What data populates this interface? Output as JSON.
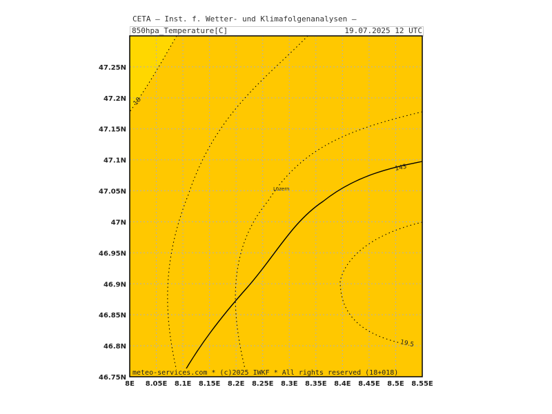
{
  "header": {
    "title": "CETA — Inst. f. Wetter- und Klimafolgenanalysen —",
    "parameter": "850hpa_Temperature[C]",
    "valid_time": "19.07.2025 12 UTC"
  },
  "footer": {
    "copyright": "meteo-services.com * (c)2025 IWKF * All rights reserved (18+018)"
  },
  "map": {
    "colors": {
      "fill_main": "#ffc800",
      "fill_warm_corner": "#ffd700",
      "grid": "#b0b0b0",
      "isotherm": "#000000"
    },
    "lon_range": [
      8.0,
      8.55
    ],
    "lat_range": [
      46.75,
      47.3
    ],
    "lon_ticks": [
      "8E",
      "8.05E",
      "8.1E",
      "8.15E",
      "8.2E",
      "8.25E",
      "8.3E",
      "8.35E",
      "8.4E",
      "8.45E",
      "8.5E",
      "8.55E"
    ],
    "lat_ticks": [
      "46.75N",
      "46.8N",
      "46.85N",
      "46.9N",
      "46.95N",
      "47N",
      "47.05N",
      "47.1N",
      "47.15N",
      "47.2N",
      "47.25N"
    ],
    "cities": [
      {
        "name": "Luzern",
        "lon": 8.28,
        "lat": 47.05
      }
    ],
    "contour_labels": [
      "18",
      "19.5"
    ],
    "highlight_label": "143"
  }
}
